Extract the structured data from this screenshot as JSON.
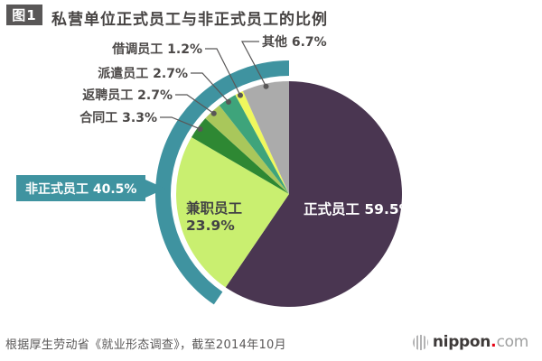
{
  "header": {
    "figure_label": "图1",
    "title": "私营单位正式员工与非正式员工的比例"
  },
  "chart_data": {
    "type": "pie",
    "title": "私营单位正式员工与非正式员工的比例",
    "unit": "%",
    "start_angle_deg": 0,
    "direction": "clockwise",
    "segments": [
      {
        "label": "正式员工",
        "value": 59.5,
        "color": "#4A3651",
        "label_style": "inside"
      },
      {
        "label": "兼职员工",
        "value": 23.9,
        "color": "#C9EF70",
        "label_style": "inside"
      },
      {
        "label": "合同工",
        "value": 3.3,
        "color": "#2E8833",
        "label_style": "callout"
      },
      {
        "label": "返聘员工",
        "value": 2.7,
        "color": "#A9C75B",
        "label_style": "callout"
      },
      {
        "label": "派遣员工",
        "value": 2.7,
        "color": "#3EA47B",
        "label_style": "callout"
      },
      {
        "label": "借调员工",
        "value": 1.2,
        "color": "#EFF85D",
        "label_style": "callout"
      },
      {
        "label": "其他",
        "value": 6.7,
        "color": "#ABABAB",
        "label_style": "callout"
      }
    ],
    "group_annotation": {
      "label": "非正式员工",
      "value": 40.5,
      "color": "#3F93A0",
      "covers": [
        "兼职员工",
        "合同工",
        "返聘员工",
        "派遣员工",
        "借调员工",
        "其他"
      ]
    }
  },
  "footer": {
    "source": "根据厚生劳动省《就业形态调查》，截至2014年10月",
    "logo": {
      "brand": "nippon",
      "dot": ".",
      "domain": "com"
    }
  }
}
